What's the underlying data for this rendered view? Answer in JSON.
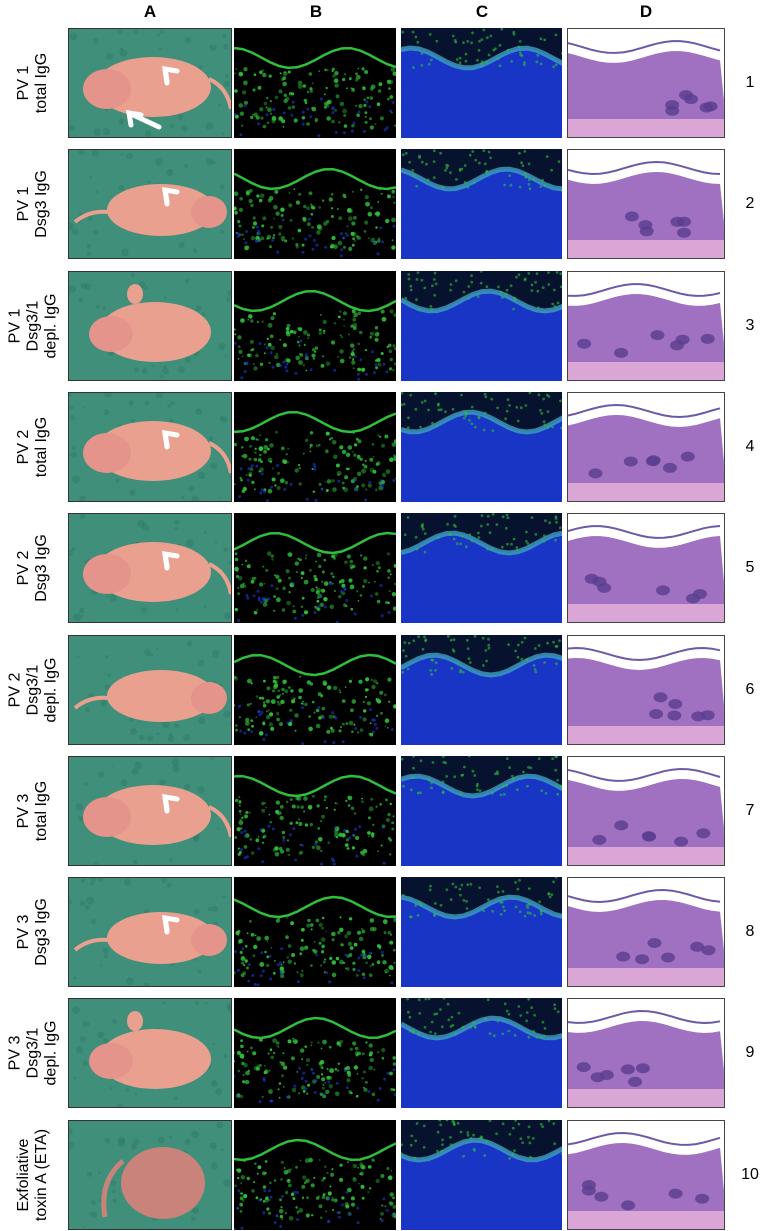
{
  "columns": [
    "A",
    "B",
    "C",
    "D"
  ],
  "rows": [
    {
      "line1": "PV 1",
      "line2": "total IgG",
      "line3": "",
      "number": "1",
      "arrows": 2,
      "mouse": "curled-right"
    },
    {
      "line1": "PV 1",
      "line2": "Dsg3 IgG",
      "line3": "",
      "number": "2",
      "arrows": 1,
      "mouse": "stretched"
    },
    {
      "line1": "PV 1",
      "line2": "Dsg3/1",
      "line3": "depl. IgG",
      "number": "3",
      "arrows": 0,
      "mouse": "curled-left"
    },
    {
      "line1": "PV 2",
      "line2": "total IgG",
      "line3": "",
      "number": "4",
      "arrows": 1,
      "mouse": "curled-right"
    },
    {
      "line1": "PV 2",
      "line2": "Dsg3 IgG",
      "line3": "",
      "number": "5",
      "arrows": 1,
      "mouse": "curled-right"
    },
    {
      "line1": "PV 2",
      "line2": "Dsg3/1",
      "line3": "depl. IgG",
      "number": "6",
      "arrows": 0,
      "mouse": "stretched"
    },
    {
      "line1": "PV 3",
      "line2": "total IgG",
      "line3": "",
      "number": "7",
      "arrows": 1,
      "mouse": "curled-right"
    },
    {
      "line1": "PV 3",
      "line2": "Dsg3 IgG",
      "line3": "",
      "number": "8",
      "arrows": 1,
      "mouse": "stretched"
    },
    {
      "line1": "PV 3",
      "line2": "Dsg3/1",
      "line3": "depl. IgG",
      "number": "9",
      "arrows": 0,
      "mouse": "curled-left"
    },
    {
      "line1": "Exfoliative",
      "line2": "toxin A (ETA)",
      "line3": "",
      "number": "10",
      "arrows": 0,
      "mouse": "curled-down"
    }
  ],
  "colors": {
    "background_green": "#3f8f7a",
    "mouse_pink": "#e9a08f",
    "if_green": "#2fbf3a",
    "dapi_blue": "#1c3ce0",
    "he_purple": "#8b5fb8",
    "he_pink": "#d9a6d6"
  }
}
